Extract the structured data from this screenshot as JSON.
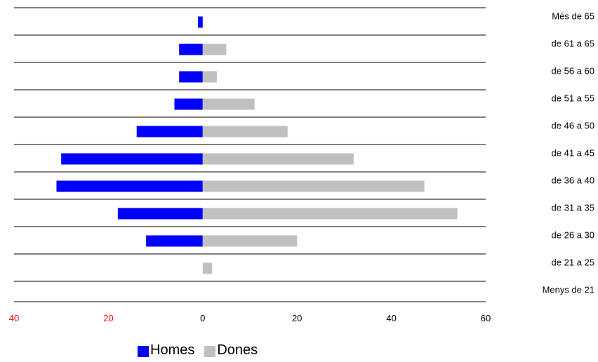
{
  "chart_data": {
    "type": "bar",
    "orientation": "horizontal-diverging",
    "categories": [
      "Més de 65",
      "de 61 a 65",
      "de 56 a 60",
      "de 51 a 55",
      "de 46 a 50",
      "de 41 a 45",
      "de 36 a 40",
      "de 31 a 35",
      "de 26 a 30",
      "de 21 a 25",
      "Menys de 21"
    ],
    "series": [
      {
        "name": "Homes",
        "color": "#0000ff",
        "values": [
          1,
          5,
          5,
          6,
          14,
          30,
          31,
          18,
          12,
          0,
          0
        ]
      },
      {
        "name": "Dones",
        "color": "#c0c0c0",
        "values": [
          0,
          5,
          3,
          11,
          18,
          32,
          47,
          54,
          20,
          2,
          0
        ]
      }
    ],
    "x_ticks": [
      {
        "value": -40,
        "label": "40",
        "color": "#ff0000"
      },
      {
        "value": -20,
        "label": "20",
        "color": "#ff0000"
      },
      {
        "value": 0,
        "label": "0",
        "color": "#000000"
      },
      {
        "value": 20,
        "label": "20",
        "color": "#000000"
      },
      {
        "value": 40,
        "label": "40",
        "color": "#000000"
      },
      {
        "value": 60,
        "label": "60",
        "color": "#000000"
      }
    ],
    "xlim": [
      -40,
      60
    ],
    "grid": "horizontal lines between categories",
    "legend_position": "bottom",
    "title": "",
    "xlabel": "",
    "ylabel": ""
  },
  "legend": {
    "homes_label": "Homes",
    "dones_label": "Dones"
  }
}
